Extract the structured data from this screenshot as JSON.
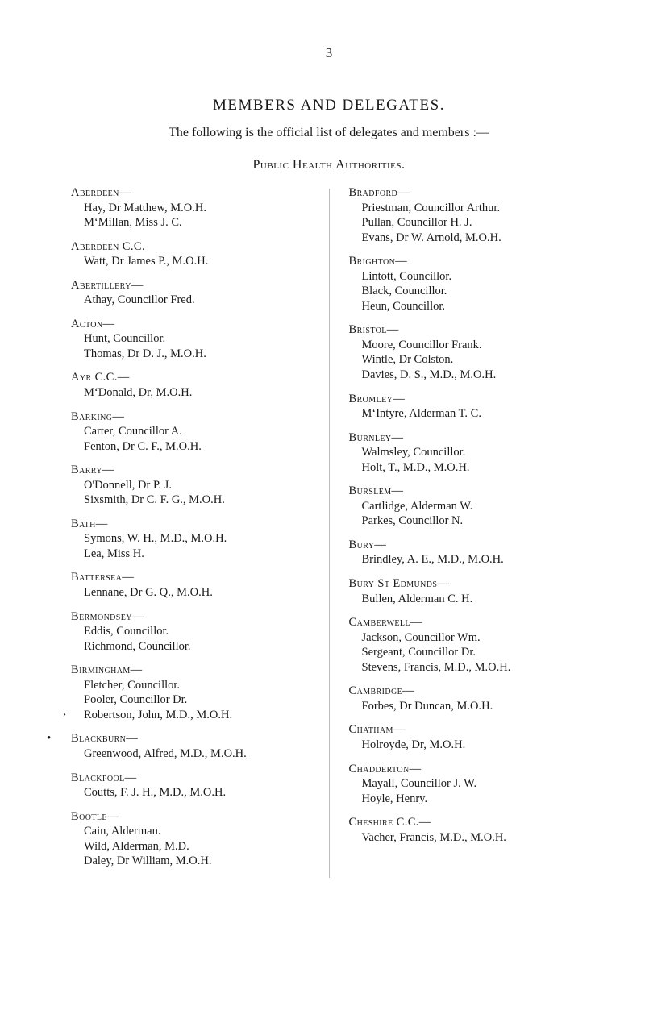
{
  "page_number": "3",
  "main_title": "MEMBERS AND DELEGATES.",
  "intro": "The following is the official list of delegates and members :—",
  "section_title_1": "Public Health",
  "section_title_2": " Authorities.",
  "columns": {
    "left": [
      {
        "authority": "Aberdeen—",
        "members": [
          "Hay, Dr Matthew, M.O.H.",
          "M‘Millan, Miss J. C."
        ]
      },
      {
        "authority": "Aberdeen C.C.",
        "members": [
          "Watt, Dr James P., M.O.H."
        ]
      },
      {
        "authority": "Abertillery—",
        "members": [
          "Athay, Councillor Fred."
        ]
      },
      {
        "authority": "Acton—",
        "members": [
          "Hunt, Councillor.",
          "Thomas, Dr D. J., M.O.H."
        ]
      },
      {
        "authority": "Ayr C.C.—",
        "members": [
          "M‘Donald, Dr, M.O.H."
        ]
      },
      {
        "authority": "Barking—",
        "members": [
          "Carter, Councillor A.",
          "Fenton, Dr C. F., M.O.H."
        ]
      },
      {
        "authority": "Barry—",
        "members": [
          "O'Donnell, Dr P. J.",
          "Sixsmith, Dr C. F. G., M.O.H."
        ]
      },
      {
        "authority": "Bath—",
        "members": [
          "Symons, W. H., M.D., M.O.H.",
          "Lea, Miss H."
        ]
      },
      {
        "authority": "Battersea—",
        "members": [
          "Lennane, Dr G. Q., M.O.H."
        ]
      },
      {
        "authority": "Bermondsey—",
        "members": [
          "Eddis, Councillor.",
          "Richmond, Councillor."
        ]
      },
      {
        "authority": "Birmingham—",
        "members": [
          "Fletcher, Councillor.",
          "Pooler, Councillor Dr.",
          "Robertson, John, M.D., M.O.H."
        ],
        "tick_before_last": true
      },
      {
        "authority": "Blackburn—",
        "members": [
          "Greenwood, Alfred, M.D., M.O.H."
        ],
        "asterisk": true
      },
      {
        "authority": "Blackpool—",
        "members": [
          "Coutts, F. J. H., M.D., M.O.H."
        ]
      },
      {
        "authority": "Bootle—",
        "members": [
          "Cain, Alderman.",
          "Wild, Alderman, M.D.",
          "Daley, Dr William, M.O.H."
        ]
      }
    ],
    "right": [
      {
        "authority": "Bradford—",
        "members": [
          "Priestman, Councillor Arthur.",
          "Pullan, Councillor H. J.",
          "Evans, Dr W. Arnold, M.O.H."
        ]
      },
      {
        "authority": "Brighton—",
        "members": [
          "Lintott, Councillor.",
          "Black, Councillor.",
          "Heun, Councillor."
        ]
      },
      {
        "authority": "Bristol—",
        "members": [
          "Moore, Councillor Frank.",
          "Wintle, Dr Colston.",
          "Davies, D. S., M.D., M.O.H."
        ]
      },
      {
        "authority": "Bromley—",
        "members": [
          "M‘Intyre, Alderman T. C."
        ]
      },
      {
        "authority": "Burnley—",
        "members": [
          "Walmsley, Councillor.",
          "Holt, T., M.D., M.O.H."
        ]
      },
      {
        "authority": "Burslem—",
        "members": [
          "Cartlidge, Alderman W.",
          "Parkes, Councillor N."
        ]
      },
      {
        "authority": "Bury—",
        "members": [
          "Brindley, A. E., M.D., M.O.H."
        ]
      },
      {
        "authority": "Bury St Edmunds—",
        "members": [
          "Bullen, Alderman C. H."
        ]
      },
      {
        "authority": "Camberwell—",
        "members": [
          "Jackson, Councillor Wm.",
          "Sergeant, Councillor Dr.",
          "Stevens, Francis, M.D., M.O.H."
        ]
      },
      {
        "authority": "Cambridge—",
        "members": [
          "Forbes, Dr Duncan, M.O.H."
        ]
      },
      {
        "authority": "Chatham—",
        "members": [
          "Holroyde, Dr, M.O.H."
        ]
      },
      {
        "authority": "Chadderton—",
        "members": [
          "Mayall, Councillor J. W.",
          "Hoyle, Henry."
        ]
      },
      {
        "authority": "Cheshire C.C.—",
        "members": [
          "Vacher, Francis, M.D., M.O.H."
        ]
      }
    ]
  }
}
